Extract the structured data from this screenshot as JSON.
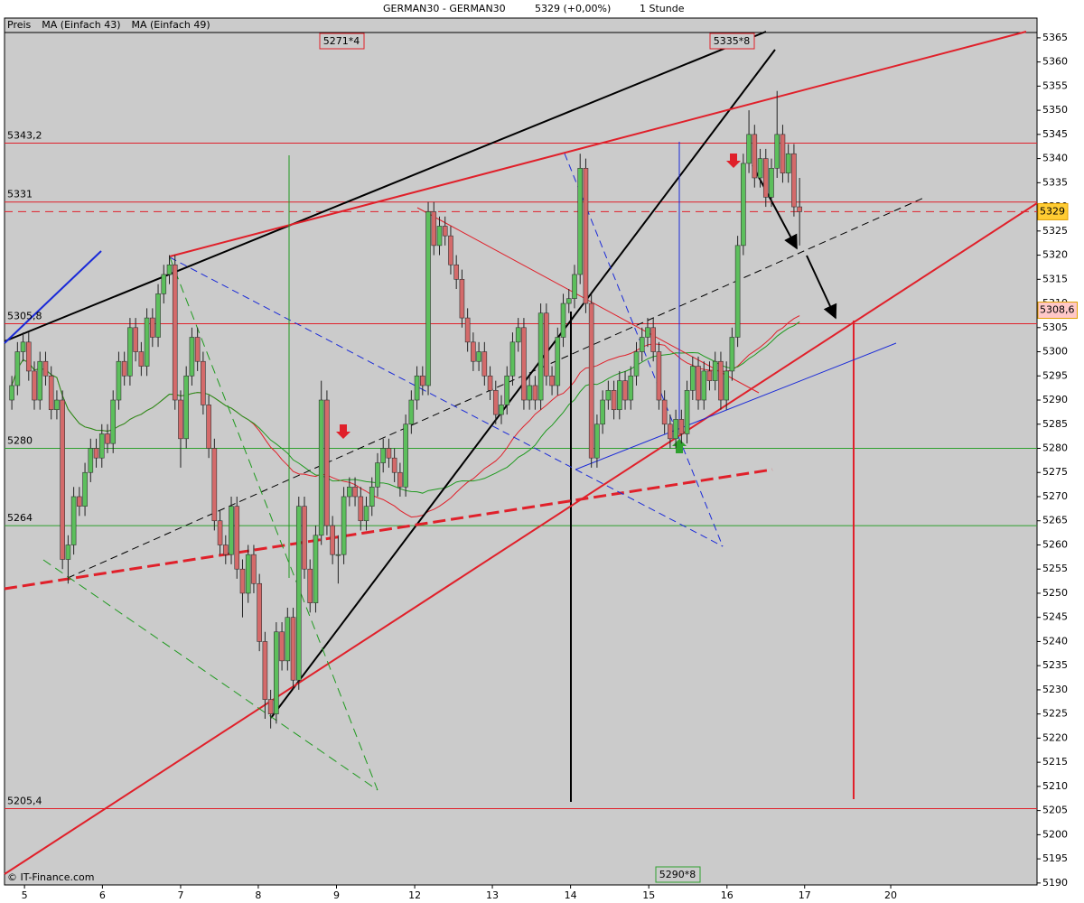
{
  "chart_data": {
    "type": "candlestick",
    "title": "GERMAN30 - GERMAN30",
    "price_label": "5329 (+0,00%)",
    "timeframe": "1 Stunde",
    "series": [
      {
        "name": "Preis",
        "color": "#000000"
      },
      {
        "name": "MA (Einfach 43)",
        "color": "#e0202a",
        "period": 43
      },
      {
        "name": "MA (Einfach 49)",
        "color": "#1f9a1f",
        "period": 49
      }
    ],
    "up_color": "#5cbf5c",
    "down_color": "#d46a6a",
    "open": [
      5290,
      5293,
      5300,
      5302,
      5296,
      5290,
      5298,
      5295,
      5288,
      5290,
      5257,
      5260,
      5270,
      5268,
      5275,
      5280,
      5278,
      5283,
      5281,
      5290,
      5298,
      5295,
      5305,
      5300,
      5297,
      5307,
      5303,
      5312,
      5316,
      5318,
      5290,
      5282,
      5295,
      5303,
      5298,
      5289,
      5280,
      5265,
      5260,
      5258,
      5268,
      5255,
      5250,
      5258,
      5252,
      5240,
      5228,
      5225,
      5242,
      5236,
      5245,
      5232,
      5268,
      5255,
      5248,
      5262,
      5290,
      5264,
      5258,
      5258,
      5270,
      5272,
      5270,
      5265,
      5268,
      5272,
      5277,
      5280,
      5278,
      5275,
      5272,
      5285,
      5290,
      5295,
      5293,
      5329,
      5322,
      5326,
      5324,
      5318,
      5315,
      5307,
      5302,
      5298,
      5300,
      5295,
      5292,
      5287,
      5289,
      5295,
      5302,
      5305,
      5290,
      5293,
      5290,
      5308,
      5295,
      5293,
      5303,
      5310,
      5311,
      5316,
      5338,
      5310,
      5278,
      5285,
      5290,
      5292,
      5288,
      5294,
      5290,
      5295,
      5300,
      5303,
      5305,
      5300,
      5290,
      5285,
      5282,
      5286,
      5283,
      5292,
      5297,
      5290,
      5296,
      5294,
      5298,
      5290,
      5296,
      5303,
      5322,
      5339,
      5345,
      5336,
      5340,
      5332,
      5338,
      5345,
      5337,
      5341,
      5330
    ],
    "high": [
      5295,
      5302,
      5304,
      5304,
      5298,
      5300,
      5300,
      5297,
      5292,
      5292,
      5262,
      5272,
      5272,
      5277,
      5282,
      5282,
      5285,
      5285,
      5292,
      5300,
      5300,
      5307,
      5307,
      5302,
      5309,
      5309,
      5314,
      5318,
      5320,
      5320,
      5292,
      5297,
      5305,
      5305,
      5300,
      5291,
      5282,
      5267,
      5262,
      5270,
      5270,
      5257,
      5260,
      5260,
      5254,
      5242,
      5230,
      5244,
      5244,
      5247,
      5247,
      5270,
      5270,
      5257,
      5264,
      5294,
      5292,
      5266,
      5262,
      5272,
      5274,
      5274,
      5272,
      5270,
      5274,
      5279,
      5282,
      5282,
      5280,
      5277,
      5287,
      5292,
      5297,
      5297,
      5331,
      5331,
      5328,
      5328,
      5326,
      5320,
      5317,
      5309,
      5304,
      5302,
      5302,
      5297,
      5294,
      5291,
      5297,
      5304,
      5307,
      5307,
      5295,
      5295,
      5310,
      5310,
      5297,
      5305,
      5312,
      5313,
      5318,
      5341,
      5340,
      5312,
      5287,
      5292,
      5294,
      5294,
      5296,
      5296,
      5297,
      5302,
      5305,
      5307,
      5307,
      5302,
      5292,
      5287,
      5288,
      5288,
      5294,
      5299,
      5299,
      5298,
      5298,
      5300,
      5300,
      5298,
      5305,
      5324,
      5341,
      5350,
      5347,
      5342,
      5342,
      5340,
      5354,
      5347,
      5343,
      5343,
      5336
    ],
    "low": [
      5288,
      5291,
      5298,
      5294,
      5288,
      5288,
      5293,
      5286,
      5286,
      5255,
      5252,
      5258,
      5266,
      5266,
      5273,
      5276,
      5276,
      5279,
      5279,
      5288,
      5293,
      5293,
      5298,
      5295,
      5295,
      5301,
      5301,
      5310,
      5314,
      5288,
      5276,
      5280,
      5293,
      5296,
      5287,
      5278,
      5263,
      5258,
      5256,
      5256,
      5253,
      5245,
      5248,
      5250,
      5238,
      5224,
      5222,
      5223,
      5234,
      5234,
      5230,
      5230,
      5253,
      5246,
      5246,
      5260,
      5262,
      5256,
      5252,
      5256,
      5268,
      5268,
      5263,
      5263,
      5266,
      5270,
      5275,
      5276,
      5273,
      5270,
      5270,
      5283,
      5288,
      5291,
      5291,
      5320,
      5320,
      5322,
      5316,
      5313,
      5305,
      5300,
      5296,
      5296,
      5293,
      5290,
      5285,
      5285,
      5287,
      5293,
      5300,
      5288,
      5288,
      5288,
      5288,
      5293,
      5291,
      5291,
      5301,
      5308,
      5309,
      5314,
      5308,
      5276,
      5276,
      5283,
      5288,
      5286,
      5286,
      5288,
      5288,
      5293,
      5298,
      5301,
      5298,
      5288,
      5283,
      5280,
      5280,
      5281,
      5281,
      5290,
      5288,
      5288,
      5292,
      5292,
      5288,
      5288,
      5294,
      5301,
      5320,
      5337,
      5334,
      5334,
      5330,
      5330,
      5336,
      5335,
      5335,
      5328,
      5322
    ],
    "close": [
      5293,
      5300,
      5302,
      5296,
      5290,
      5298,
      5295,
      5288,
      5290,
      5257,
      5260,
      5270,
      5268,
      5275,
      5280,
      5278,
      5283,
      5281,
      5290,
      5298,
      5295,
      5305,
      5300,
      5297,
      5307,
      5303,
      5312,
      5316,
      5318,
      5290,
      5282,
      5295,
      5303,
      5298,
      5289,
      5280,
      5265,
      5260,
      5258,
      5268,
      5255,
      5250,
      5258,
      5252,
      5240,
      5228,
      5225,
      5242,
      5236,
      5245,
      5232,
      5268,
      5255,
      5248,
      5262,
      5290,
      5264,
      5258,
      5258,
      5270,
      5272,
      5270,
      5265,
      5268,
      5272,
      5277,
      5280,
      5278,
      5275,
      5272,
      5285,
      5290,
      5295,
      5293,
      5329,
      5322,
      5326,
      5324,
      5318,
      5315,
      5307,
      5302,
      5298,
      5300,
      5295,
      5292,
      5287,
      5289,
      5295,
      5302,
      5305,
      5290,
      5293,
      5290,
      5308,
      5295,
      5293,
      5303,
      5310,
      5311,
      5316,
      5338,
      5310,
      5278,
      5285,
      5290,
      5292,
      5288,
      5294,
      5290,
      5295,
      5300,
      5303,
      5305,
      5300,
      5290,
      5285,
      5282,
      5286,
      5283,
      5292,
      5297,
      5290,
      5296,
      5294,
      5298,
      5290,
      5296,
      5303,
      5322,
      5339,
      5345,
      5336,
      5340,
      5332,
      5338,
      5345,
      5337,
      5341,
      5330,
      5329
    ],
    "xlim": [
      -1.3,
      182.2
    ],
    "xticks": [
      {
        "value": 2.25,
        "label": "5"
      },
      {
        "value": 16.1,
        "label": "6"
      },
      {
        "value": 30.0,
        "label": "7"
      },
      {
        "value": 43.8,
        "label": "8"
      },
      {
        "value": 57.7,
        "label": "9"
      },
      {
        "value": 71.6,
        "label": "12"
      },
      {
        "value": 85.4,
        "label": "13"
      },
      {
        "value": 99.3,
        "label": "14"
      },
      {
        "value": 113.2,
        "label": "15"
      },
      {
        "value": 127.1,
        "label": "16"
      },
      {
        "value": 140.9,
        "label": "17"
      },
      {
        "value": 156.2,
        "label": "20"
      }
    ],
    "ylim": [
      5189.6,
      5366.1
    ],
    "yticks": [
      5190,
      5195,
      5200,
      5205,
      5210,
      5215,
      5220,
      5225,
      5230,
      5235,
      5240,
      5245,
      5250,
      5255,
      5260,
      5265,
      5270,
      5275,
      5280,
      5285,
      5290,
      5295,
      5300,
      5305,
      5310,
      5315,
      5320,
      5325,
      5330,
      5335,
      5340,
      5345,
      5350,
      5355,
      5360,
      5365
    ],
    "levels": [
      {
        "value": 5343.2,
        "label": "5343,2",
        "color": "#e0202a"
      },
      {
        "value": 5331,
        "color": "#e0202a"
      },
      {
        "value": 5305.8,
        "label": "5305,8",
        "color": "#e0202a"
      },
      {
        "value": 5280,
        "color": "#2fa02f"
      },
      {
        "value": 5264,
        "color": "#2fa02f"
      },
      {
        "value": 5205.4,
        "label": "5205,4",
        "color": "#e0202a"
      }
    ],
    "price_markers": [
      {
        "value": 5329,
        "color": "#ffcc33",
        "dashed": true
      },
      {
        "value": 5308.6,
        "label": "5308,6",
        "color": "#ffc8c8"
      }
    ],
    "annotations": [
      "5271*4",
      "5335*8",
      "5290*8"
    ],
    "footer": "© IT-Finance.com"
  }
}
